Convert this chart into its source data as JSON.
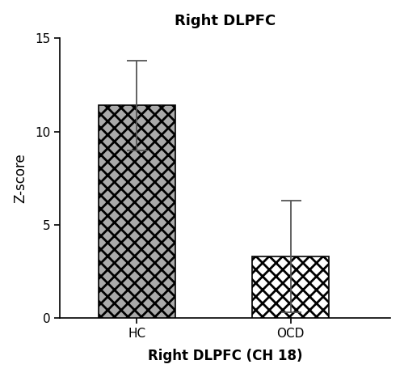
{
  "categories": [
    "HC",
    "OCD"
  ],
  "values": [
    11.4,
    3.3
  ],
  "errors": [
    2.4,
    3.0
  ],
  "title": "Right DLPFC",
  "xlabel": "Right DLPFC (CH 18)",
  "ylabel": "Z-score",
  "ylim": [
    0,
    15
  ],
  "yticks": [
    0,
    5,
    10,
    15
  ],
  "bar_width": 0.5,
  "bar_positions": [
    1.0,
    2.0
  ],
  "hatch_HC": "xx",
  "hatch_OCD": "XX",
  "bar_facecolor_HC": "#aaaaaa",
  "bar_facecolor_OCD": "#ffffff",
  "bar_edgecolor": "#000000",
  "error_color": "#555555",
  "background_color": "#ffffff",
  "title_fontsize": 13,
  "label_fontsize": 12,
  "tick_fontsize": 11,
  "xlim": [
    0.5,
    2.65
  ]
}
